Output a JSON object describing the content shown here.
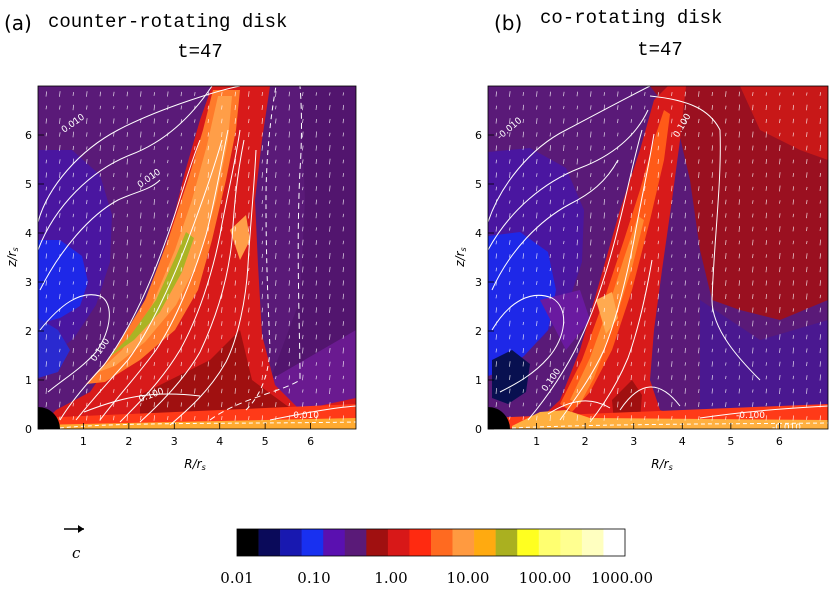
{
  "chart_data": [
    {
      "type": "heatmap",
      "panel_label": "(a)",
      "title": "counter-rotating disk",
      "subtitle": "t=47",
      "xlabel": "R/r_s",
      "ylabel": "z/r_s",
      "xlim": [
        0,
        7
      ],
      "ylim": [
        0,
        7
      ],
      "xticks": [
        "1",
        "2",
        "3",
        "4",
        "5",
        "6"
      ],
      "yticks": [
        "0",
        "1",
        "2",
        "3",
        "4",
        "5",
        "6"
      ],
      "contour_labels": [
        "0.010",
        "0.010",
        "0.100",
        "0.100",
        "-0.010"
      ],
      "background_colors": {
        "ambient": "#5a1a78",
        "blue_cavity": "#1a20e8",
        "red_jet": "#d81a1a",
        "orange_core": "#ff9a3a",
        "green_core": "#a8b820"
      },
      "contour_color": "#ffffff"
    },
    {
      "type": "heatmap",
      "panel_label": "(b)",
      "title": "co-rotating disk",
      "subtitle": "t=47",
      "xlabel": "R/r_s",
      "ylabel": "z/r_s",
      "xlim": [
        0,
        7
      ],
      "ylim": [
        0,
        7
      ],
      "xticks": [
        "1",
        "2",
        "3",
        "4",
        "5",
        "6"
      ],
      "yticks": [
        "0",
        "1",
        "2",
        "3",
        "4",
        "5",
        "6"
      ],
      "contour_labels": [
        "-0.010",
        "0.100",
        "0.100",
        "-0.100",
        "-0.010"
      ],
      "background_colors": {
        "ambient": "#5a1a78",
        "blue_cavity": "#1a20e8",
        "red_jet": "#d81a1a",
        "orange_core": "#ff9a3a"
      },
      "contour_color": "#ffffff"
    }
  ],
  "colorbar": {
    "colors": [
      "#000000",
      "#0a0a5a",
      "#1818b0",
      "#1830f0",
      "#5a10b0",
      "#5a1a78",
      "#a01010",
      "#d81818",
      "#ff2a10",
      "#ff6a20",
      "#ff9a40",
      "#ffaa10",
      "#aab020",
      "#ffff20",
      "#ffff70",
      "#ffff90",
      "#ffffc0",
      "#ffffff"
    ],
    "tick_labels": [
      "0.01",
      "0.10",
      "1.00",
      "10.00",
      "100.00",
      "1000.00"
    ]
  },
  "vector_legend": {
    "label": "c"
  }
}
